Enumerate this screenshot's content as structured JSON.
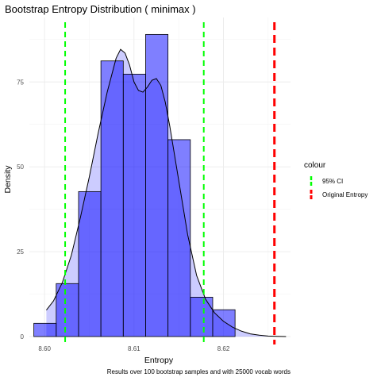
{
  "chart_data": {
    "type": "bar",
    "title": "Bootstrap Entropy Distribution ( minimax )",
    "xlabel": "Entropy",
    "ylabel": "Density",
    "caption": "Results over 100 bootstrap samples and with 25000 vocab words",
    "xlim": [
      8.5983,
      8.6275
    ],
    "ylim": [
      0,
      94
    ],
    "x_ticks": [
      8.6,
      8.61,
      8.62
    ],
    "x_tick_labels": [
      "8.60",
      "8.61",
      "8.62"
    ],
    "y_ticks": [
      0,
      25,
      50,
      75
    ],
    "y_tick_labels": [
      "0",
      "25",
      "50",
      "75"
    ],
    "grid": true,
    "legend_position": "right",
    "histogram": {
      "bins": [
        {
          "x0": 8.5988,
          "x1": 8.6013,
          "value": 3.9
        },
        {
          "x0": 8.6013,
          "x1": 8.6038,
          "value": 15.6
        },
        {
          "x0": 8.6038,
          "x1": 8.6063,
          "value": 42.7
        },
        {
          "x0": 8.6063,
          "x1": 8.6088,
          "value": 81.2
        },
        {
          "x0": 8.6088,
          "x1": 8.6113,
          "value": 77.3
        },
        {
          "x0": 8.6113,
          "x1": 8.6138,
          "value": 89.0
        },
        {
          "x0": 8.6138,
          "x1": 8.6163,
          "value": 58.0
        },
        {
          "x0": 8.6163,
          "x1": 8.6188,
          "value": 11.6
        },
        {
          "x0": 8.6188,
          "x1": 8.6213,
          "value": 7.9
        }
      ],
      "fill": "#0000ff",
      "fill_opacity": 0.5,
      "stroke": "#000000"
    },
    "density": {
      "x": [
        8.6002,
        8.601,
        8.602,
        8.603,
        8.604,
        8.605,
        8.606,
        8.607,
        8.608,
        8.6085,
        8.609,
        8.6095,
        8.61,
        8.6105,
        8.611,
        8.6115,
        8.612,
        8.6125,
        8.613,
        8.6135,
        8.614,
        8.615,
        8.616,
        8.617,
        8.618,
        8.619,
        8.62,
        8.621,
        8.622,
        8.623,
        8.624,
        8.625,
        8.626,
        8.627
      ],
      "y": [
        7.8,
        10.5,
        16.0,
        24.0,
        35.0,
        47.0,
        60.0,
        72.0,
        82.0,
        84.6,
        83.5,
        80.0,
        75.0,
        72.5,
        72.0,
        73.5,
        75.5,
        76.0,
        74.0,
        69.0,
        62.0,
        46.0,
        30.0,
        18.0,
        11.0,
        7.0,
        4.5,
        2.8,
        1.6,
        0.8,
        0.4,
        0.15,
        0.05,
        0.0
      ],
      "fill": "#0000ff",
      "fill_opacity": 0.2,
      "stroke": "#000000"
    },
    "vlines": [
      {
        "x": 8.6023,
        "series": "95% CI",
        "color": "#00ff00"
      },
      {
        "x": 8.6178,
        "series": "95% CI",
        "color": "#00ff00"
      },
      {
        "x": 8.6257,
        "series": "Original Entropy",
        "color": "#ff0000"
      }
    ],
    "legend": {
      "title": "colour",
      "entries": [
        {
          "label": "95% CI",
          "color": "#00ff00"
        },
        {
          "label": "Original Entropy",
          "color": "#ff0000"
        }
      ]
    }
  }
}
